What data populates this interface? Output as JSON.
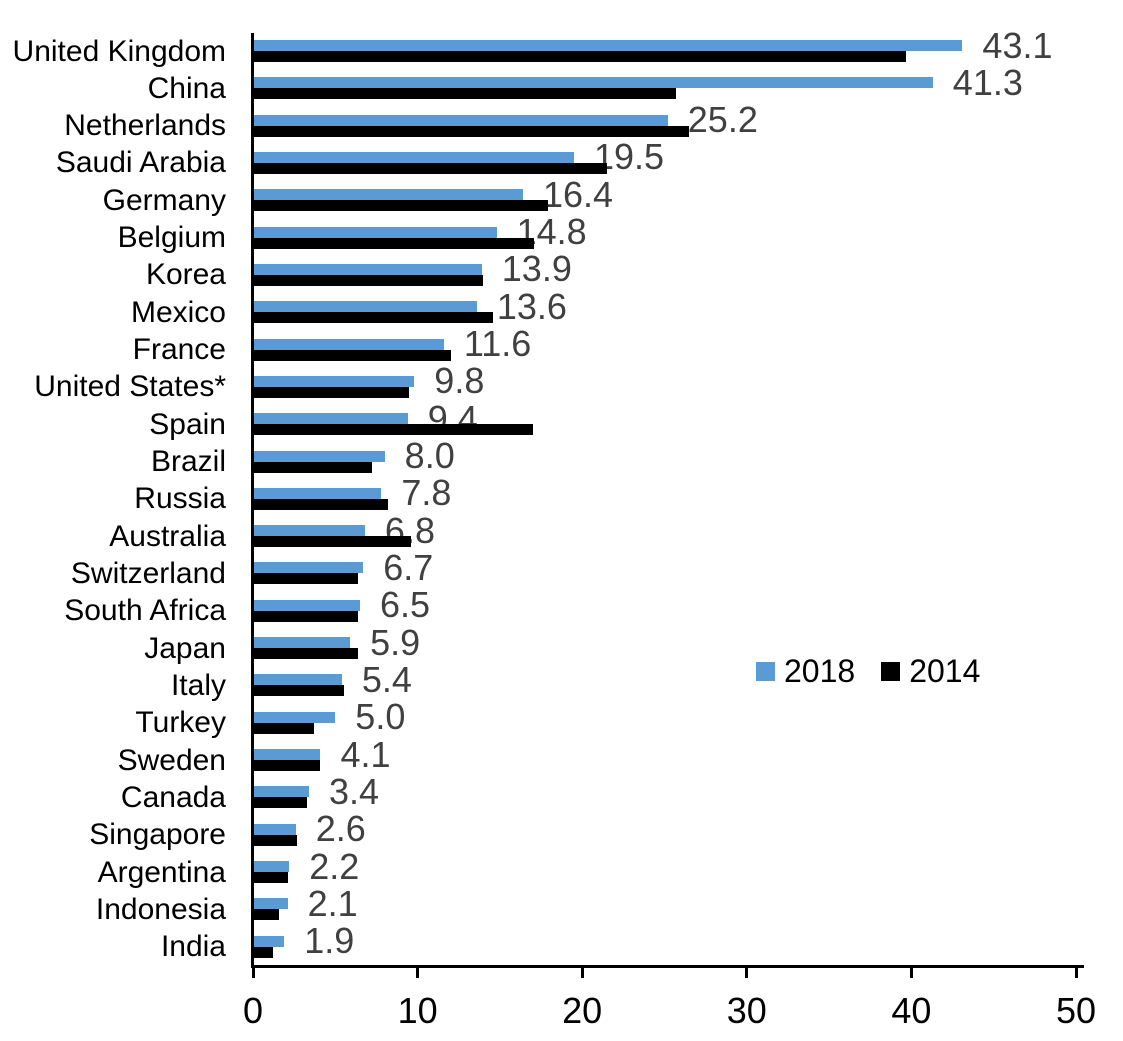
{
  "chart_data": {
    "type": "bar",
    "orientation": "horizontal",
    "title": "",
    "xlabel": "",
    "ylabel": "",
    "xlim": [
      0,
      50
    ],
    "xticks": [
      0,
      10,
      20,
      30,
      40,
      50
    ],
    "grid": false,
    "legend": {
      "position": "middle-right",
      "entries": [
        "2018",
        "2014"
      ]
    },
    "data_label_series": "2018",
    "data_label_format": "one-decimal",
    "data_label_color": "#404040",
    "categories": [
      "United Kingdom",
      "China",
      "Netherlands",
      "Saudi Arabia",
      "Germany",
      "Belgium",
      "Korea",
      "Mexico",
      "France",
      "United States*",
      "Spain",
      "Brazil",
      "Russia",
      "Australia",
      "Switzerland",
      "South Africa",
      "Japan",
      "Italy",
      "Turkey",
      "Sweden",
      "Canada",
      "Singapore",
      "Argentina",
      "Indonesia",
      "India"
    ],
    "series": [
      {
        "name": "2018",
        "color": "#5B9BD5",
        "values": [
          43.1,
          41.3,
          25.2,
          19.5,
          16.4,
          14.8,
          13.9,
          13.6,
          11.6,
          9.8,
          9.4,
          8.0,
          7.8,
          6.8,
          6.7,
          6.5,
          5.9,
          5.4,
          5.0,
          4.1,
          3.4,
          2.6,
          2.2,
          2.1,
          1.9
        ]
      },
      {
        "name": "2014",
        "color": "#000000",
        "values": [
          39.7,
          25.7,
          26.5,
          21.5,
          17.9,
          17.1,
          14.0,
          14.6,
          12.0,
          9.5,
          17.0,
          7.2,
          8.2,
          9.6,
          6.4,
          6.4,
          6.4,
          5.5,
          3.7,
          4.1,
          3.3,
          2.7,
          2.1,
          1.6,
          1.2
        ]
      }
    ],
    "data_labels": [
      "43.1",
      "41.3",
      "25.2",
      "19.5",
      "16.4",
      "14.8",
      "13.9",
      "13.6",
      "11.6",
      "9.8",
      "9.4",
      "8.0",
      "7.8",
      "6.8",
      "6.7",
      "6.5",
      "5.9",
      "5.4",
      "5.0",
      "4.1",
      "3.4",
      "2.6",
      "2.2",
      "2.1",
      "1.9"
    ]
  }
}
